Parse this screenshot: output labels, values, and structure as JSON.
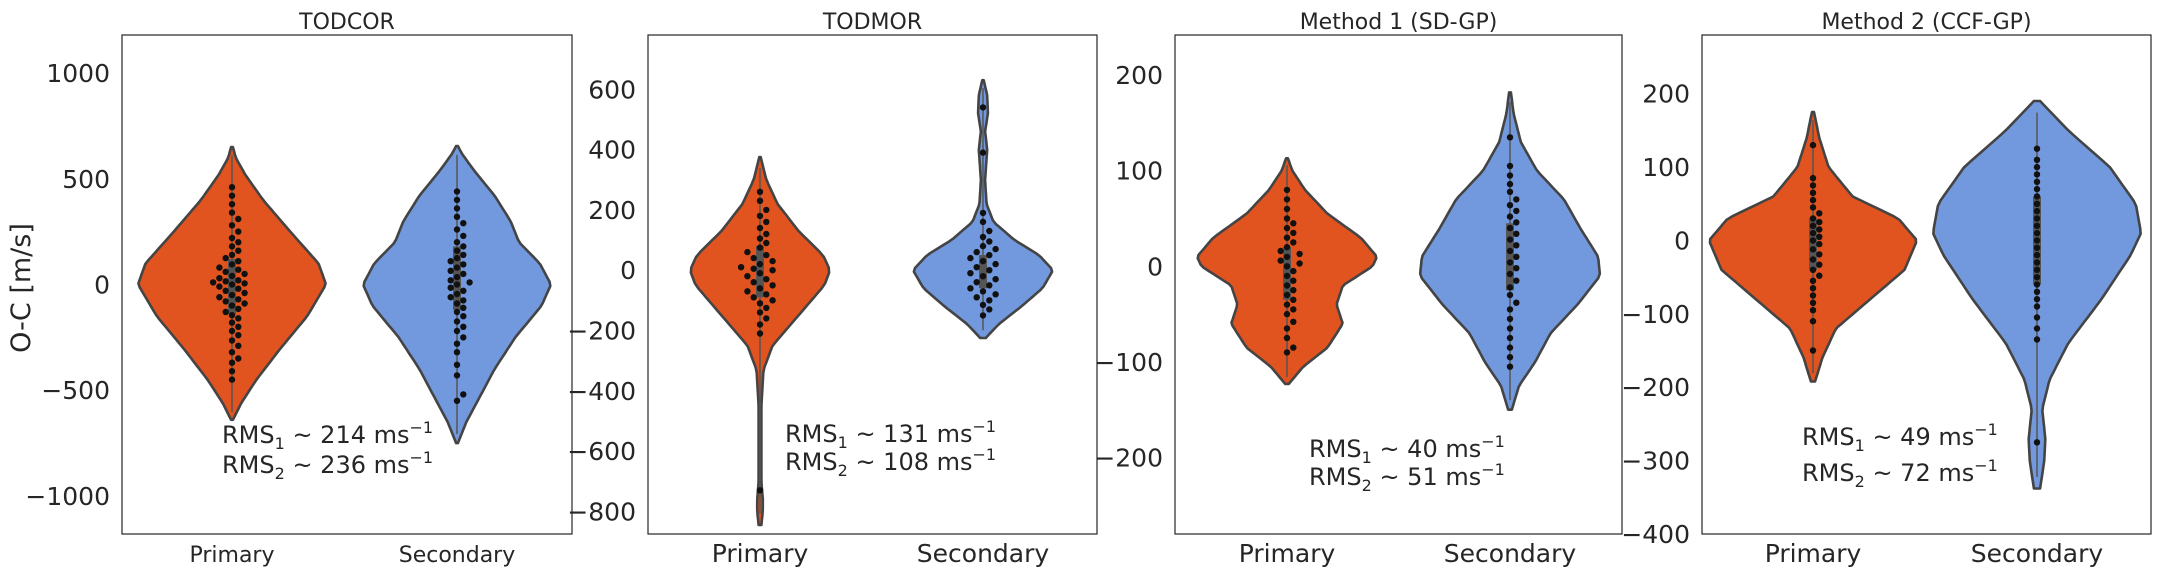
{
  "figure": {
    "ylabel": "O-C [m/s]",
    "colors": {
      "primary": "#e2541f",
      "secondary": "#7299de",
      "outline": "#444444",
      "dot": "#111111",
      "box": "#555555"
    }
  },
  "chart_data": [
    {
      "type": "violin",
      "title": "TODCOR",
      "categories": [
        "Primary",
        "Secondary"
      ],
      "ylabel": "O-C [m/s]",
      "ylim": [
        -1180,
        1180
      ],
      "yticks": [
        -1000,
        -500,
        0,
        500,
        1000
      ],
      "ytick_labels": [
        "−1000",
        "−500",
        "0",
        "500",
        "1000"
      ],
      "rms": {
        "r1_label": "RMS",
        "r1_sub": "1",
        "r1_value": " ~ 214 ms",
        "r2_label": "RMS",
        "r2_sub": "2",
        "r2_value": " ~ 236 ms",
        "sup": "−1"
      },
      "series": [
        {
          "name": "Primary",
          "range": [
            -640,
            650
          ],
          "iqr": [
            -140,
            120
          ],
          "median": 0,
          "shape": [
            [
              -640,
              0.01
            ],
            [
              -560,
              0.1
            ],
            [
              -450,
              0.26
            ],
            [
              -300,
              0.52
            ],
            [
              -150,
              0.8
            ],
            [
              0,
              1.0
            ],
            [
              100,
              0.92
            ],
            [
              250,
              0.62
            ],
            [
              400,
              0.33
            ],
            [
              520,
              0.14
            ],
            [
              600,
              0.04
            ],
            [
              650,
              0.01
            ]
          ],
          "points": [
            -450,
            -410,
            -370,
            -350,
            -320,
            -290,
            -265,
            -240,
            -220,
            -200,
            -180,
            -160,
            -145,
            -130,
            -115,
            -100,
            -90,
            -80,
            -70,
            -60,
            -50,
            -40,
            -30,
            -20,
            -10,
            0,
            5,
            10,
            15,
            20,
            30,
            40,
            50,
            60,
            70,
            80,
            95,
            110,
            125,
            140,
            160,
            180,
            200,
            220,
            250,
            280,
            310,
            340,
            380,
            420,
            460
          ]
        },
        {
          "name": "Secondary",
          "range": [
            -750,
            655
          ],
          "iqr": [
            -120,
            180
          ],
          "median": 30,
          "shape": [
            [
              -750,
              0.01
            ],
            [
              -650,
              0.1
            ],
            [
              -550,
              0.22
            ],
            [
              -400,
              0.4
            ],
            [
              -250,
              0.62
            ],
            [
              -100,
              0.9
            ],
            [
              0,
              1.0
            ],
            [
              100,
              0.88
            ],
            [
              200,
              0.66
            ],
            [
              300,
              0.57
            ],
            [
              420,
              0.4
            ],
            [
              540,
              0.18
            ],
            [
              620,
              0.05
            ],
            [
              655,
              0.01
            ]
          ],
          "points": [
            -550,
            -520,
            -430,
            -380,
            -320,
            -280,
            -250,
            -220,
            -200,
            -175,
            -150,
            -130,
            -110,
            -90,
            -75,
            -60,
            -45,
            -30,
            -15,
            0,
            10,
            20,
            35,
            50,
            65,
            80,
            95,
            110,
            125,
            140,
            160,
            180,
            200,
            230,
            260,
            290,
            320,
            360,
            400,
            440
          ]
        }
      ]
    },
    {
      "type": "violin",
      "title": "TODMOR",
      "categories": [
        "Primary",
        "Secondary"
      ],
      "ylim": [
        -875,
        780
      ],
      "yticks": [
        -800,
        -600,
        -400,
        -200,
        0,
        200,
        400,
        600
      ],
      "ytick_labels": [
        "−800",
        "−600",
        "−400",
        "−200",
        "0",
        "200",
        "400",
        "600"
      ],
      "rms": {
        "r1_label": "RMS",
        "r1_sub": "1",
        "r1_value": " ~ 131 ms",
        "r2_label": "RMS",
        "r2_sub": "2",
        "r2_value": " ~ 108 ms",
        "sup": "−1"
      },
      "series": [
        {
          "name": "Primary",
          "range": [
            -845,
            375
          ],
          "iqr": [
            -90,
            80
          ],
          "median": 0,
          "shape": [
            [
              -845,
              0.02
            ],
            [
              -800,
              0.04
            ],
            [
              -760,
              0.04
            ],
            [
              -700,
              0.02
            ],
            [
              -600,
              0.02
            ],
            [
              -450,
              0.02
            ],
            [
              -330,
              0.05
            ],
            [
              -250,
              0.18
            ],
            [
              -150,
              0.55
            ],
            [
              -50,
              0.92
            ],
            [
              0,
              1.0
            ],
            [
              50,
              0.9
            ],
            [
              130,
              0.55
            ],
            [
              220,
              0.25
            ],
            [
              300,
              0.09
            ],
            [
              375,
              0.01
            ]
          ],
          "points": [
            -730,
            -210,
            -180,
            -160,
            -140,
            -125,
            -110,
            -100,
            -90,
            -80,
            -70,
            -60,
            -50,
            -40,
            -30,
            -20,
            -10,
            0,
            5,
            10,
            20,
            30,
            40,
            50,
            60,
            75,
            90,
            105,
            120,
            140,
            160,
            180,
            200,
            230,
            260
          ]
        },
        {
          "name": "Secondary",
          "range": [
            -225,
            630
          ],
          "iqr": [
            -60,
            50
          ],
          "median": 0,
          "shape": [
            [
              -225,
              0.04
            ],
            [
              -180,
              0.22
            ],
            [
              -120,
              0.55
            ],
            [
              -60,
              0.85
            ],
            [
              0,
              1.0
            ],
            [
              50,
              0.8
            ],
            [
              100,
              0.45
            ],
            [
              160,
              0.15
            ],
            [
              220,
              0.05
            ],
            [
              300,
              0.03
            ],
            [
              400,
              0.06
            ],
            [
              460,
              0.03
            ],
            [
              520,
              0.07
            ],
            [
              580,
              0.06
            ],
            [
              630,
              0.01
            ]
          ],
          "points": [
            -150,
            -130,
            -115,
            -100,
            -90,
            -80,
            -70,
            -60,
            -50,
            -40,
            -30,
            -20,
            -10,
            0,
            10,
            20,
            30,
            40,
            50,
            60,
            70,
            80,
            95,
            110,
            130,
            160,
            190,
            390,
            540
          ]
        }
      ]
    },
    {
      "type": "violin",
      "title": "Method 1 (SD-GP)",
      "categories": [
        "Primary",
        "Secondary"
      ],
      "ylim": [
        -280,
        242
      ],
      "yticks": [
        -200,
        -100,
        0,
        100,
        200
      ],
      "ytick_labels": [
        "−200",
        "−100",
        "0",
        "100",
        "200"
      ],
      "rms": {
        "r1_label": "RMS",
        "r1_sub": "1",
        "r1_value": " ~ 40 ms",
        "r2_label": "RMS",
        "r2_sub": "2",
        "r2_value": " ~ 51 ms",
        "sup": "−1"
      },
      "series": [
        {
          "name": "Primary",
          "range": [
            -123,
            113
          ],
          "iqr": [
            -35,
            20
          ],
          "median": -5,
          "shape": [
            [
              -123,
              0.02
            ],
            [
              -105,
              0.18
            ],
            [
              -85,
              0.45
            ],
            [
              -60,
              0.62
            ],
            [
              -40,
              0.55
            ],
            [
              -20,
              0.62
            ],
            [
              0,
              0.95
            ],
            [
              10,
              1.0
            ],
            [
              30,
              0.82
            ],
            [
              55,
              0.45
            ],
            [
              80,
              0.2
            ],
            [
              100,
              0.06
            ],
            [
              113,
              0.01
            ]
          ],
          "points": [
            -90,
            -85,
            -75,
            -65,
            -58,
            -50,
            -45,
            -40,
            -35,
            -30,
            -25,
            -20,
            -15,
            -10,
            -5,
            0,
            3,
            6,
            10,
            13,
            16,
            20,
            25,
            30,
            35,
            40,
            45,
            50,
            60,
            70,
            80
          ]
        },
        {
          "name": "Secondary",
          "range": [
            -150,
            182
          ],
          "iqr": [
            -25,
            45
          ],
          "median": 10,
          "shape": [
            [
              -150,
              0.02
            ],
            [
              -125,
              0.1
            ],
            [
              -100,
              0.28
            ],
            [
              -70,
              0.45
            ],
            [
              -40,
              0.75
            ],
            [
              -10,
              1.0
            ],
            [
              10,
              0.98
            ],
            [
              40,
              0.78
            ],
            [
              70,
              0.6
            ],
            [
              100,
              0.3
            ],
            [
              130,
              0.12
            ],
            [
              160,
              0.04
            ],
            [
              182,
              0.01
            ]
          ],
          "points": [
            -105,
            -95,
            -85,
            -75,
            -65,
            -55,
            -45,
            -38,
            -30,
            -22,
            -15,
            -8,
            -2,
            4,
            10,
            16,
            22,
            28,
            34,
            40,
            46,
            52,
            58,
            64,
            70,
            78,
            86,
            95,
            105,
            135
          ]
        }
      ]
    },
    {
      "type": "violin",
      "title": "Method 2 (CCF-GP)",
      "categories": [
        "Primary",
        "Secondary"
      ],
      "ylim": [
        -400,
        280
      ],
      "yticks": [
        -400,
        -300,
        -200,
        -100,
        0,
        100,
        200
      ],
      "ytick_labels": [
        "−400",
        "−300",
        "−200",
        "−100",
        "0",
        "100",
        "200"
      ],
      "rms": {
        "r1_label": "RMS",
        "r1_sub": "1",
        "r1_value": " ~ 49 ms",
        "r2_label": "RMS",
        "r2_sub": "2",
        "r2_value": " ~ 72 ms",
        "sup": "−1"
      },
      "series": [
        {
          "name": "Primary",
          "range": [
            -192,
            175
          ],
          "iqr": [
            -40,
            30
          ],
          "median": 0,
          "shape": [
            [
              -192,
              0.02
            ],
            [
              -160,
              0.09
            ],
            [
              -120,
              0.22
            ],
            [
              -80,
              0.55
            ],
            [
              -40,
              0.88
            ],
            [
              0,
              1.0
            ],
            [
              30,
              0.82
            ],
            [
              60,
              0.38
            ],
            [
              100,
              0.15
            ],
            [
              140,
              0.06
            ],
            [
              175,
              0.01
            ]
          ],
          "points": [
            -150,
            -110,
            -95,
            -85,
            -75,
            -65,
            -55,
            -48,
            -40,
            -33,
            -26,
            -19,
            -12,
            -5,
            0,
            5,
            10,
            15,
            20,
            25,
            30,
            37,
            45,
            55,
            65,
            75,
            85,
            130
          ]
        },
        {
          "name": "Secondary",
          "range": [
            -338,
            190
          ],
          "iqr": [
            -60,
            60
          ],
          "median": 15,
          "shape": [
            [
              -338,
              0.03
            ],
            [
              -300,
              0.07
            ],
            [
              -270,
              0.08
            ],
            [
              -230,
              0.05
            ],
            [
              -190,
              0.12
            ],
            [
              -140,
              0.3
            ],
            [
              -80,
              0.62
            ],
            [
              -20,
              0.9
            ],
            [
              10,
              1.0
            ],
            [
              50,
              0.95
            ],
            [
              100,
              0.7
            ],
            [
              150,
              0.3
            ],
            [
              190,
              0.03
            ]
          ],
          "points": [
            -275,
            -135,
            -120,
            -105,
            -90,
            -80,
            -70,
            -60,
            -50,
            -40,
            -30,
            -20,
            -10,
            0,
            10,
            20,
            30,
            40,
            50,
            60,
            70,
            80,
            90,
            100,
            110,
            125
          ]
        }
      ]
    }
  ]
}
